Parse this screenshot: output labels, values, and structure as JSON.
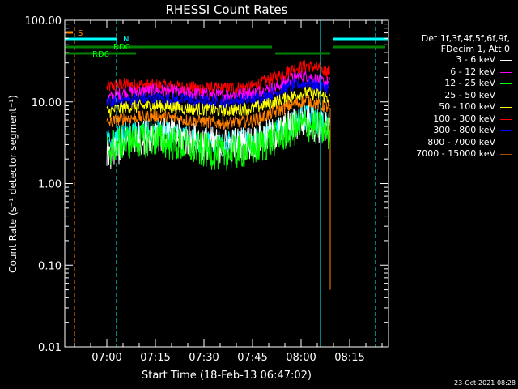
{
  "chart_data": {
    "type": "line",
    "title": "RHESSI Count Rates",
    "xlabel": "Start Time (18-Feb-13 06:47:02)",
    "ylabel": "Count Rate (s⁻¹ detector segment⁻¹)",
    "yscale": "log",
    "ylim": [
      0.01,
      100
    ],
    "xlim": [
      "06:47",
      "08:27"
    ],
    "x_ticks": [
      "07:00",
      "07:15",
      "07:30",
      "07:45",
      "08:00",
      "08:15"
    ],
    "y_ticks": [
      "0.01",
      "0.10",
      "1.00",
      "10.00",
      "100.00"
    ],
    "legend_header": [
      "Det 1f,3f,4f,5f,6f,9f,",
      "FDecim 1, Att 0"
    ],
    "legend_position": "right",
    "series": [
      {
        "name": "3 - 6 keV",
        "color": "#ffffff",
        "x": [
          "07:00",
          "07:05",
          "07:15",
          "07:25",
          "07:35",
          "07:45",
          "07:52",
          "07:58",
          "08:02",
          "08:06",
          "08:09"
        ],
        "values": [
          2.1,
          3.0,
          4.2,
          3.5,
          2.9,
          3.2,
          4.0,
          5.3,
          6.0,
          4.8,
          4.3
        ]
      },
      {
        "name": "6 - 12 keV",
        "color": "#ff00ff",
        "x": [
          "07:00",
          "07:05",
          "07:15",
          "07:25",
          "07:35",
          "07:45",
          "07:52",
          "07:58",
          "08:02",
          "08:06",
          "08:09"
        ],
        "values": [
          11,
          13,
          14,
          13,
          12,
          13,
          15,
          20,
          21,
          18,
          17
        ]
      },
      {
        "name": "12 - 25 keV",
        "color": "#00ff00",
        "x": [
          "07:00",
          "07:05",
          "07:15",
          "07:25",
          "07:35",
          "07:45",
          "07:52",
          "07:58",
          "08:02",
          "08:06",
          "08:09"
        ],
        "values": [
          2.6,
          3.2,
          3.5,
          2.8,
          2.3,
          2.6,
          3.5,
          4.7,
          5.3,
          4.6,
          4.0
        ]
      },
      {
        "name": "25 - 50 keV",
        "color": "#00ffff",
        "x": [
          "07:00",
          "07:05",
          "07:15",
          "07:25",
          "07:35",
          "07:45",
          "07:52",
          "07:58",
          "08:02",
          "08:06",
          "08:09"
        ],
        "values": [
          3.1,
          3.8,
          4.3,
          3.5,
          3.0,
          3.3,
          4.3,
          5.8,
          6.5,
          5.6,
          5.0
        ]
      },
      {
        "name": "50 - 100 keV",
        "color": "#ffff00",
        "x": [
          "07:00",
          "07:05",
          "07:15",
          "07:25",
          "07:35",
          "07:45",
          "07:52",
          "07:58",
          "08:02",
          "08:06",
          "08:09"
        ],
        "values": [
          7.5,
          8.5,
          9.0,
          8.3,
          7.8,
          8.3,
          10,
          12,
          13,
          12,
          11
        ]
      },
      {
        "name": "100 - 300 keV",
        "color": "#ff0000",
        "x": [
          "07:00",
          "07:05",
          "07:15",
          "07:25",
          "07:35",
          "07:45",
          "07:52",
          "07:58",
          "08:02",
          "08:06",
          "08:09"
        ],
        "values": [
          15,
          16.5,
          16,
          15,
          14.5,
          15.5,
          20,
          26,
          28,
          25,
          23
        ]
      },
      {
        "name": "300 - 800 keV",
        "color": "#0000ff",
        "x": [
          "07:00",
          "07:05",
          "07:15",
          "07:25",
          "07:35",
          "07:45",
          "07:52",
          "07:58",
          "08:02",
          "08:06",
          "08:09"
        ],
        "values": [
          9.5,
          10.5,
          11,
          10.5,
          10,
          10.8,
          13,
          16,
          17,
          15.5,
          14.5
        ]
      },
      {
        "name": "800 - 7000 keV",
        "color": "#ff8000",
        "x": [
          "07:00",
          "07:05",
          "07:15",
          "07:25",
          "07:35",
          "07:45",
          "07:52",
          "07:58",
          "08:02",
          "08:06",
          "08:09"
        ],
        "values": [
          5.5,
          6.2,
          6.8,
          6.0,
          5.5,
          5.9,
          7.5,
          9.5,
          10.3,
          9.0,
          8.5
        ]
      },
      {
        "name": "7000 - 15000 keV",
        "color": "#a05000",
        "x": [],
        "values": []
      }
    ],
    "flag_bars": [
      {
        "color": "#00ffff",
        "segments": [
          [
            "06:47",
            "07:03"
          ],
          [
            "08:10",
            "08:27"
          ]
        ]
      },
      {
        "color": "#008000",
        "segments": [
          [
            "06:47",
            "07:51"
          ],
          [
            "07:52",
            "08:09"
          ],
          [
            "08:10",
            "08:26"
          ]
        ]
      },
      {
        "color": "#008000",
        "segments": [
          [
            "06:47",
            "07:09"
          ]
        ]
      }
    ],
    "annotations": [
      {
        "text": "S",
        "color": "#ff8000",
        "x": "06:50"
      },
      {
        "text": "N",
        "color": "#00ffff",
        "x": "07:03"
      },
      {
        "text": "RD0",
        "color": "#00ff00",
        "x": "07:03"
      },
      {
        "text": "RD6",
        "color": "#00ff00",
        "x": "06:55"
      }
    ],
    "vlines": [
      {
        "x": "06:47",
        "color": "#00ffff",
        "style": "solid"
      },
      {
        "x": "06:50",
        "color": "#ff8000",
        "style": "dashed"
      },
      {
        "x": "07:03",
        "color": "#00ffff",
        "style": "dashed"
      },
      {
        "x": "08:06",
        "color": "#00ffff",
        "style": "solid"
      },
      {
        "x": "08:23",
        "color": "#00ffff",
        "style": "dashed"
      }
    ]
  },
  "footer": "23-Oct-2021 08:28"
}
